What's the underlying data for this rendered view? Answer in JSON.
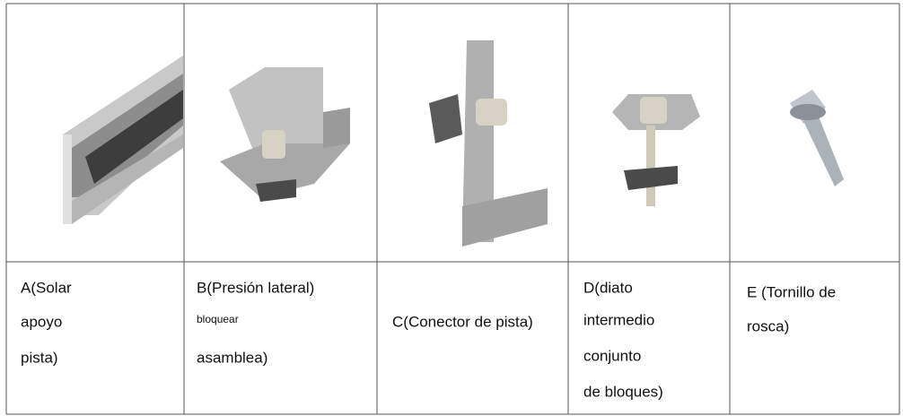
{
  "table": {
    "cells": [
      [
        "A(Solar",
        "apoyo",
        "pista)"
      ],
      [
        "B(Presión lateral)",
        "bloquear",
        "asamblea)"
      ],
      [
        "C(Conector de pista)"
      ],
      [
        "D(diato",
        "intermedio",
        "conjunto",
        "de bloques)"
      ],
      [
        "E (Tornillo de",
        "rosca)"
      ]
    ]
  }
}
